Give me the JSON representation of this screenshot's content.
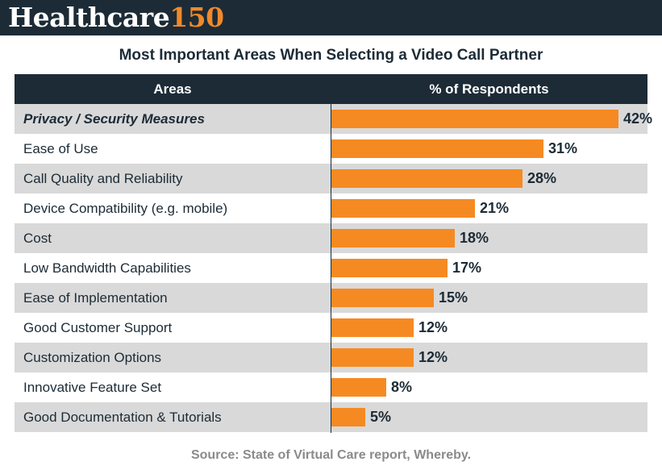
{
  "brand": {
    "word": "Healthcare",
    "number": "150"
  },
  "chart_data": {
    "type": "table",
    "title": "Most Important Areas When Selecting a Video Call Partner",
    "columns": [
      "Areas",
      "% of Respondents"
    ],
    "categories": [
      "Privacy / Security Measures",
      "Ease of Use",
      "Call Quality and Reliability",
      "Device Compatibility (e.g. mobile)",
      "Cost",
      "Low Bandwidth Capabilities",
      "Ease of Implementation",
      "Good Customer Support",
      "Customization Options",
      "Innovative Feature Set",
      "Good Documentation & Tutorials"
    ],
    "values": [
      42,
      31,
      28,
      21,
      18,
      17,
      15,
      12,
      12,
      8,
      5
    ],
    "value_labels": [
      "42%",
      "31%",
      "28%",
      "21%",
      "18%",
      "17%",
      "15%",
      "12%",
      "12%",
      "8%",
      "5%"
    ],
    "highlighted_category": "Privacy / Security Measures",
    "xlim": [
      0,
      42
    ],
    "source": "Source: State of Virtual Care report, Whereby."
  },
  "colors": {
    "header": "#1c2b36",
    "bar": "#f58a22",
    "shade": "#d9d9d9",
    "accent": "#f0892a"
  }
}
